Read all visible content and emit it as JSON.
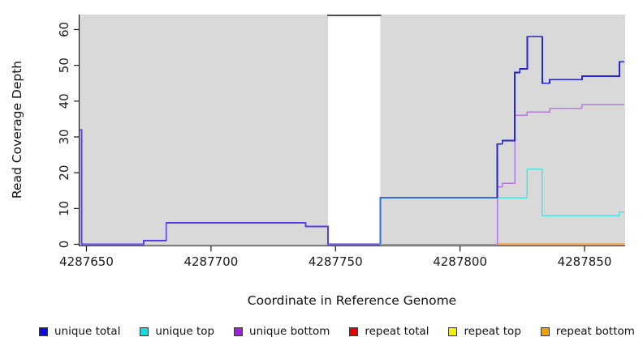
{
  "chart_data": {
    "type": "line",
    "subtype": "step",
    "title": "",
    "xlabel": "Coordinate in Reference Genome",
    "ylabel": "Read Coverage Depth",
    "xlim": [
      4287647,
      4287866
    ],
    "ylim": [
      0,
      63
    ],
    "x_ticks": [
      4287650,
      4287700,
      4287750,
      4287800,
      4287850
    ],
    "y_ticks": [
      0,
      10,
      20,
      30,
      40,
      50,
      60
    ],
    "grid": false,
    "legend_position": "bottom",
    "plot_bg_color": "#d9d9d9",
    "uncovered_band": {
      "from": 4287747,
      "to": 4287768,
      "color": "#ffffff",
      "top_marker_color": "#4d4d4d"
    },
    "series": [
      {
        "name": "unique total",
        "color": "#0a0ae6",
        "points": [
          [
            4287647,
            32
          ],
          [
            4287648,
            0
          ],
          [
            4287673,
            1
          ],
          [
            4287682,
            6
          ],
          [
            4287738,
            5
          ],
          [
            4287747,
            0
          ],
          [
            4287768,
            13
          ],
          [
            4287815,
            28
          ],
          [
            4287817,
            29
          ],
          [
            4287822,
            48
          ],
          [
            4287824,
            49
          ],
          [
            4287827,
            58
          ],
          [
            4287833,
            45
          ],
          [
            4287836,
            46
          ],
          [
            4287849,
            47
          ],
          [
            4287864,
            51
          ],
          [
            4287866,
            51
          ]
        ]
      },
      {
        "name": "unique top",
        "color": "#00e1e1",
        "points": [
          [
            4287647,
            0
          ],
          [
            4287768,
            13
          ],
          [
            4287827,
            21
          ],
          [
            4287833,
            8
          ],
          [
            4287864,
            9
          ],
          [
            4287866,
            9
          ]
        ]
      },
      {
        "name": "unique bottom",
        "color": "#9e1fe0",
        "points": [
          [
            4287647,
            32
          ],
          [
            4287648,
            0
          ],
          [
            4287673,
            1
          ],
          [
            4287682,
            6
          ],
          [
            4287738,
            5
          ],
          [
            4287747,
            0
          ],
          [
            4287815,
            16
          ],
          [
            4287817,
            17
          ],
          [
            4287822,
            36
          ],
          [
            4287827,
            37
          ],
          [
            4287836,
            38
          ],
          [
            4287849,
            39
          ],
          [
            4287866,
            39
          ]
        ]
      },
      {
        "name": "repeat total",
        "color": "#e60000",
        "points": [
          [
            4287647,
            0
          ],
          [
            4287866,
            0
          ]
        ]
      },
      {
        "name": "repeat top",
        "color": "#f0f000",
        "points": [
          [
            4287647,
            0
          ],
          [
            4287866,
            0
          ]
        ]
      },
      {
        "name": "repeat bottom",
        "color": "#f0a000",
        "points": [
          [
            4287647,
            0
          ],
          [
            4287866,
            0
          ]
        ]
      }
    ],
    "legend": [
      "unique total",
      "unique top",
      "unique bottom",
      "repeat total",
      "repeat top",
      "repeat bottom"
    ]
  },
  "render": {
    "note": "visible stroke segments incl. blended overlap colors at the zero line",
    "layers": [
      {
        "series": "repeat top",
        "from": 4287648,
        "to": 4287747,
        "color": "#8fce8f",
        "width": 1.4
      },
      {
        "series": "repeat total",
        "from": 4287768,
        "to": 4287815,
        "color": "#d8407c",
        "width": 1.4
      },
      {
        "series": "repeat bottom",
        "from": 4287815,
        "to": 4287866,
        "color": "#ff8c1a",
        "width": 1.8
      },
      {
        "series": "unique top",
        "from": 4287747,
        "to": 4287866,
        "color": "#4fe3e3",
        "width": 1.5
      },
      {
        "series": "unique bottom",
        "from": 4287815,
        "to": 4287866,
        "color": "#b678e6",
        "width": 1.5
      },
      {
        "series": "unique total",
        "from": 4287647,
        "to": 4287768,
        "color": "#5a3be6",
        "width": 1.8
      },
      {
        "series": "unique total",
        "from": 4287768,
        "to": 4287815,
        "color": "#2e6fe0",
        "width": 1.8
      },
      {
        "series": "unique total",
        "from": 4287815,
        "to": 4287866,
        "color": "#2525d8",
        "width": 1.8
      }
    ]
  }
}
